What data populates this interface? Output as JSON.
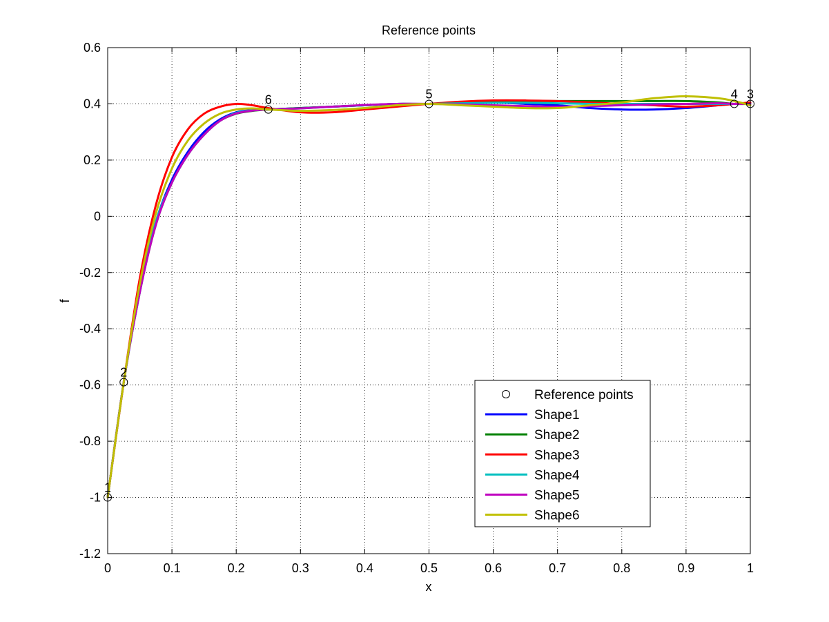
{
  "chart_data": {
    "type": "line",
    "title": "Reference points",
    "xlabel": "x",
    "ylabel": "f",
    "xlim": [
      0,
      1
    ],
    "ylim": [
      -1.2,
      0.6
    ],
    "xticks": [
      0,
      0.1,
      0.2,
      0.3,
      0.4,
      0.5,
      0.6,
      0.7,
      0.8,
      0.9,
      1
    ],
    "xtick_labels": [
      "0",
      "0.1",
      "0.2",
      "0.3",
      "0.4",
      "0.5",
      "0.6",
      "0.7",
      "0.8",
      "0.9",
      "1"
    ],
    "yticks": [
      -1.2,
      -1,
      -0.8,
      -0.6,
      -0.4,
      -0.2,
      0,
      0.2,
      0.4,
      0.6
    ],
    "ytick_labels": [
      "-1.2",
      "-1",
      "-0.8",
      "-0.6",
      "-0.4",
      "-0.2",
      "0",
      "0.2",
      "0.4",
      "0.6"
    ],
    "grid": true,
    "legend_position": "bottom-right",
    "reference_points": {
      "name": "Reference points",
      "points": [
        {
          "label": "1",
          "x": 0.0,
          "y": -1.0
        },
        {
          "label": "2",
          "x": 0.025,
          "y": -0.59
        },
        {
          "label": "3",
          "x": 1.0,
          "y": 0.4
        },
        {
          "label": "4",
          "x": 0.975,
          "y": 0.4
        },
        {
          "label": "5",
          "x": 0.5,
          "y": 0.4
        },
        {
          "label": "6",
          "x": 0.25,
          "y": 0.38
        }
      ]
    },
    "series": [
      {
        "name": "Shape1",
        "color": "#0000ff",
        "x": [
          0,
          0.025,
          0.05,
          0.075,
          0.1,
          0.125,
          0.15,
          0.175,
          0.2,
          0.225,
          0.25,
          0.3,
          0.35,
          0.4,
          0.45,
          0.5,
          0.55,
          0.6,
          0.65,
          0.7,
          0.75,
          0.8,
          0.85,
          0.9,
          0.95,
          0.975,
          1
        ],
        "y": [
          -1.0,
          -0.59,
          -0.26,
          -0.02,
          0.13,
          0.23,
          0.3,
          0.345,
          0.37,
          0.378,
          0.38,
          0.385,
          0.39,
          0.395,
          0.4,
          0.4,
          0.405,
          0.405,
          0.4,
          0.395,
          0.385,
          0.38,
          0.38,
          0.385,
          0.395,
          0.4,
          0.4
        ]
      },
      {
        "name": "Shape2",
        "color": "#008000",
        "x": [
          0,
          0.025,
          0.05,
          0.075,
          0.1,
          0.125,
          0.15,
          0.175,
          0.2,
          0.225,
          0.25,
          0.3,
          0.35,
          0.4,
          0.45,
          0.5,
          0.55,
          0.6,
          0.65,
          0.7,
          0.75,
          0.8,
          0.85,
          0.9,
          0.95,
          0.975,
          1
        ],
        "y": [
          -1.0,
          -0.59,
          -0.27,
          -0.03,
          0.12,
          0.22,
          0.29,
          0.34,
          0.365,
          0.375,
          0.38,
          0.385,
          0.39,
          0.395,
          0.4,
          0.4,
          0.405,
          0.41,
          0.41,
          0.41,
          0.41,
          0.41,
          0.41,
          0.41,
          0.405,
          0.4,
          0.4
        ]
      },
      {
        "name": "Shape3",
        "color": "#ff0000",
        "x": [
          0,
          0.025,
          0.05,
          0.075,
          0.1,
          0.125,
          0.15,
          0.175,
          0.2,
          0.225,
          0.25,
          0.3,
          0.35,
          0.4,
          0.45,
          0.5,
          0.55,
          0.6,
          0.65,
          0.7,
          0.75,
          0.8,
          0.85,
          0.9,
          0.95,
          0.975,
          1
        ],
        "y": [
          -1.0,
          -0.59,
          -0.22,
          0.04,
          0.21,
          0.31,
          0.365,
          0.39,
          0.4,
          0.395,
          0.385,
          0.37,
          0.37,
          0.38,
          0.39,
          0.4,
          0.408,
          0.412,
          0.412,
          0.41,
          0.405,
          0.4,
          0.395,
          0.39,
          0.395,
          0.4,
          0.405
        ]
      },
      {
        "name": "Shape4",
        "color": "#00bfbf",
        "x": [
          0,
          0.025,
          0.05,
          0.075,
          0.1,
          0.125,
          0.15,
          0.175,
          0.2,
          0.225,
          0.25,
          0.3,
          0.35,
          0.4,
          0.45,
          0.5,
          0.55,
          0.6,
          0.65,
          0.7,
          0.75,
          0.8,
          0.85,
          0.9,
          0.95,
          0.975,
          1
        ],
        "y": [
          -1.0,
          -0.59,
          -0.27,
          -0.02,
          0.12,
          0.22,
          0.29,
          0.34,
          0.368,
          0.377,
          0.38,
          0.384,
          0.39,
          0.395,
          0.4,
          0.4,
          0.402,
          0.404,
          0.404,
          0.402,
          0.4,
          0.4,
          0.4,
          0.4,
          0.4,
          0.4,
          0.4
        ]
      },
      {
        "name": "Shape5",
        "color": "#bf00bf",
        "x": [
          0,
          0.025,
          0.05,
          0.075,
          0.1,
          0.125,
          0.15,
          0.175,
          0.2,
          0.225,
          0.25,
          0.3,
          0.35,
          0.4,
          0.45,
          0.5,
          0.55,
          0.6,
          0.65,
          0.7,
          0.75,
          0.8,
          0.85,
          0.9,
          0.95,
          0.975,
          1
        ],
        "y": [
          -1.0,
          -0.59,
          -0.27,
          -0.03,
          0.12,
          0.22,
          0.29,
          0.34,
          0.366,
          0.376,
          0.38,
          0.384,
          0.39,
          0.396,
          0.4,
          0.4,
          0.398,
          0.395,
          0.392,
          0.39,
          0.392,
          0.395,
          0.398,
          0.4,
          0.402,
          0.4,
          0.4
        ]
      },
      {
        "name": "Shape6",
        "color": "#bfbf00",
        "x": [
          0,
          0.025,
          0.05,
          0.075,
          0.1,
          0.125,
          0.15,
          0.175,
          0.2,
          0.225,
          0.25,
          0.3,
          0.35,
          0.4,
          0.45,
          0.5,
          0.55,
          0.6,
          0.65,
          0.7,
          0.75,
          0.8,
          0.85,
          0.9,
          0.95,
          0.975,
          1
        ],
        "y": [
          -1.0,
          -0.59,
          -0.24,
          0.01,
          0.17,
          0.27,
          0.33,
          0.365,
          0.38,
          0.384,
          0.38,
          0.375,
          0.378,
          0.385,
          0.395,
          0.4,
          0.395,
          0.39,
          0.385,
          0.385,
          0.395,
          0.405,
          0.42,
          0.427,
          0.42,
          0.41,
          0.395
        ]
      }
    ]
  }
}
